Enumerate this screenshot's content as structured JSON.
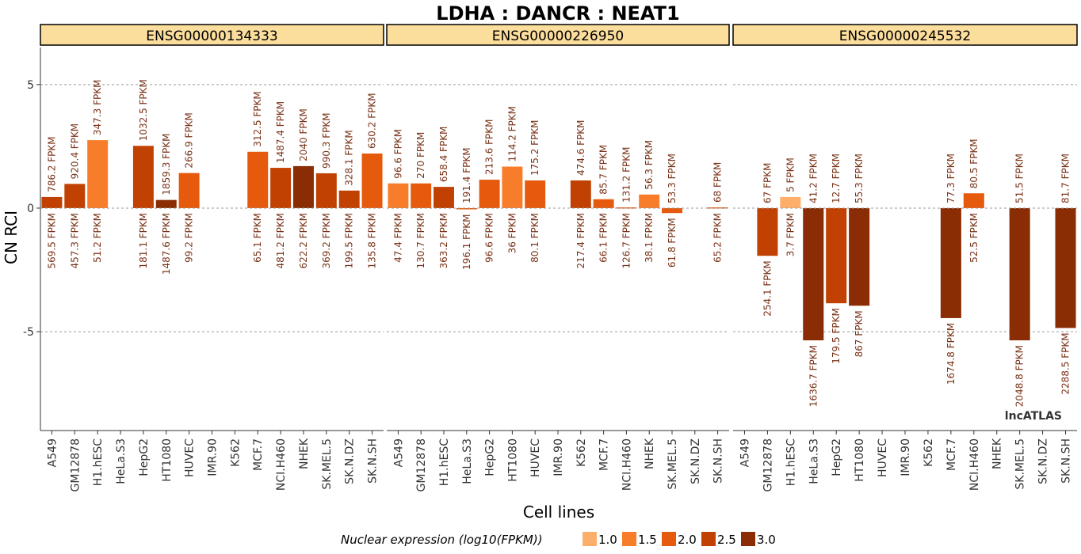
{
  "chart_data": {
    "type": "bar",
    "title": "LDHA : DANCR : NEAT1",
    "xlabel": "Cell lines",
    "ylabel": "CN RCI",
    "ylim": [
      -9,
      6.5
    ],
    "yticks": [
      5,
      0,
      -5
    ],
    "ytick_labels": [
      "5",
      "0",
      "-5"
    ],
    "categories": [
      "A549",
      "GM12878",
      "H1.hESC",
      "HeLa.S3",
      "HepG2",
      "HT1080",
      "HUVEC",
      "IMR.90",
      "K562",
      "MCF.7",
      "NCI.H460",
      "NHEK",
      "SK.MEL.5",
      "SK.N.DZ",
      "SK.N.SH"
    ],
    "legend": {
      "title": "Nuclear expression (log10(FPKM))",
      "position": "bottom",
      "items": [
        {
          "label": "1.0",
          "color": "#fdae6b"
        },
        {
          "label": "1.5",
          "color": "#f87d2a"
        },
        {
          "label": "2.0",
          "color": "#e55a0c"
        },
        {
          "label": "2.5",
          "color": "#c14103"
        },
        {
          "label": "3.0",
          "color": "#8a2d04"
        }
      ]
    },
    "watermark": "lncATLAS",
    "panels": [
      {
        "name": "ENSG00000134333",
        "values": [
          0.45,
          0.98,
          2.75,
          null,
          2.52,
          0.33,
          1.42,
          null,
          null,
          2.28,
          1.63,
          1.7,
          1.41,
          0.71,
          2.21
        ],
        "level": [
          2.5,
          2.5,
          1.5,
          null,
          2.5,
          3.0,
          2.0,
          null,
          null,
          2.0,
          2.5,
          3.0,
          2.5,
          2.5,
          2.0
        ],
        "top_labels": [
          "786.2 FPKM",
          "920.4 FPKM",
          "347.3 FPKM",
          "",
          "1032.5 FPKM",
          "1859.3 FPKM",
          "266.9 FPKM",
          "",
          "",
          "312.5 FPKM",
          "1487.4 FPKM",
          "2040 FPKM",
          "990.3 FPKM",
          "328.1 FPKM",
          "630.2 FPKM"
        ],
        "bottom_labels": [
          "569.5 FPKM",
          "457.3 FPKM",
          "51.2 FPKM",
          "",
          "181.1 FPKM",
          "1487.6 FPKM",
          "99.2 FPKM",
          "",
          "",
          "65.1 FPKM",
          "481.2 FPKM",
          "622.2 FPKM",
          "369.2 FPKM",
          "199.5 FPKM",
          "135.8 FPKM"
        ]
      },
      {
        "name": "ENSG00000226950",
        "values": [
          1.0,
          1.0,
          0.86,
          -0.05,
          1.15,
          1.68,
          1.12,
          null,
          1.12,
          0.36,
          0.03,
          0.55,
          -0.2,
          null,
          0.03
        ],
        "level": [
          1.5,
          2.0,
          2.5,
          2.0,
          2.0,
          1.5,
          2.0,
          null,
          2.5,
          2.0,
          2.0,
          1.5,
          2.0,
          null,
          2.0
        ],
        "top_labels": [
          "96.6 FPKM",
          "270 FPKM",
          "658.4 FPKM",
          "191.4 FPKM",
          "213.6 FPKM",
          "114.2 FPKM",
          "175.2 FPKM",
          "",
          "474.6 FPKM",
          "85.7 FPKM",
          "131.2 FPKM",
          "56.3 FPKM",
          "53.3 FPKM",
          "",
          "68 FPKM"
        ],
        "bottom_labels": [
          "47.4 FPKM",
          "130.7 FPKM",
          "363.2 FPKM",
          "196.1 FPKM",
          "96.6 FPKM",
          "36 FPKM",
          "80.1 FPKM",
          "",
          "217.4 FPKM",
          "66.1 FPKM",
          "126.7 FPKM",
          "38.1 FPKM",
          "61.8 FPKM",
          "",
          "65.2 FPKM"
        ]
      },
      {
        "name": "ENSG00000245532",
        "values": [
          null,
          -1.93,
          0.45,
          -5.35,
          -3.85,
          -3.95,
          null,
          null,
          null,
          -4.45,
          0.6,
          null,
          -5.35,
          null,
          -4.85
        ],
        "level": [
          null,
          2.5,
          1.0,
          3.0,
          2.5,
          3.0,
          null,
          null,
          null,
          3.0,
          2.0,
          null,
          3.0,
          null,
          3.0
        ],
        "top_labels": [
          "",
          "67 FPKM",
          "5 FPKM",
          "41.2 FPKM",
          "12.7 FPKM",
          "55.3 FPKM",
          "",
          "",
          "",
          "77.3 FPKM",
          "80.5 FPKM",
          "",
          "51.5 FPKM",
          "",
          "81.7 FPKM"
        ],
        "bottom_labels": [
          "",
          "254.1 FPKM",
          "3.7 FPKM",
          "1636.7 FPKM",
          "179.5 FPKM",
          "867 FPKM",
          "",
          "",
          "",
          "1674.8 FPKM",
          "52.5 FPKM",
          "",
          "2048.8 FPKM",
          "",
          "2288.5 FPKM"
        ]
      }
    ]
  }
}
